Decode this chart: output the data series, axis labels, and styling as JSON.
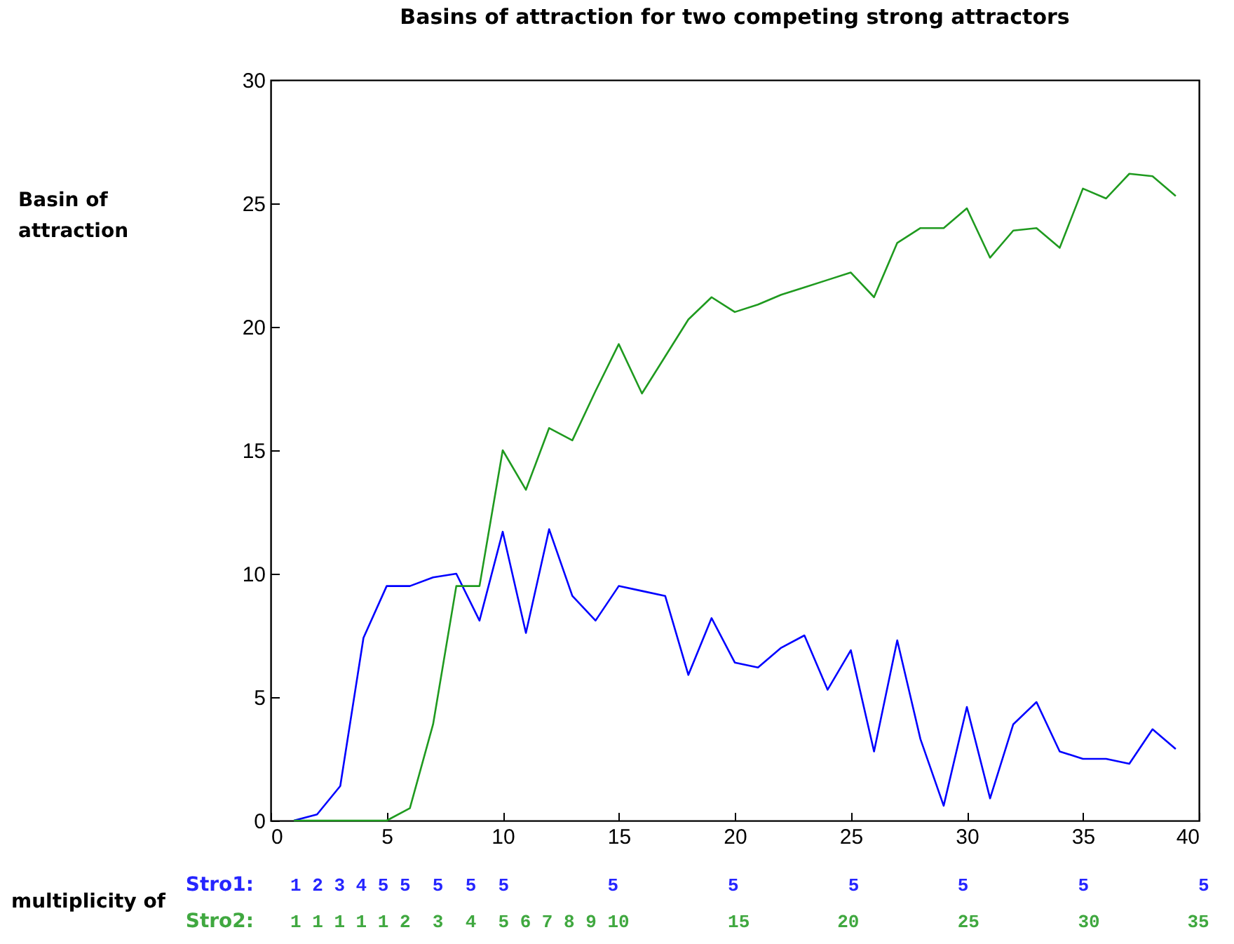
{
  "chart_data": {
    "type": "line",
    "title": "Basins of attraction for two competing strong attractors",
    "x": [
      1,
      2,
      3,
      4,
      5,
      6,
      7,
      8,
      9,
      10,
      11,
      12,
      13,
      14,
      15,
      16,
      17,
      18,
      19,
      20,
      21,
      22,
      23,
      24,
      25,
      26,
      27,
      28,
      29,
      30,
      31,
      32,
      33,
      34,
      35,
      36,
      37,
      38,
      39
    ],
    "series": [
      {
        "color": "#0000ff",
        "values": [
          0,
          0.25,
          1.4,
          7.4,
          9.5,
          9.5,
          9.85,
          10.0,
          8.1,
          11.7,
          7.6,
          11.8,
          9.1,
          8.1,
          9.5,
          9.3,
          9.1,
          5.9,
          8.2,
          6.4,
          6.2,
          7.0,
          7.5,
          5.3,
          6.9,
          2.8,
          7.3,
          3.3,
          0.6,
          4.6,
          0.9,
          3.9,
          4.8,
          2.8,
          2.5,
          2.5,
          2.3,
          3.7,
          2.9
        ]
      },
      {
        "color": "#1f9a1f",
        "values": [
          0,
          0,
          0,
          0,
          0,
          0.5,
          3.9,
          9.5,
          9.5,
          15.0,
          13.4,
          15.9,
          15.4,
          17.4,
          19.3,
          17.3,
          18.8,
          20.3,
          21.2,
          20.6,
          20.9,
          21.3,
          21.6,
          21.9,
          22.2,
          21.2,
          23.4,
          24.0,
          24.0,
          24.8,
          22.8,
          23.9,
          24.0,
          23.2,
          25.6,
          25.2,
          26.2,
          26.1,
          25.3
        ]
      }
    ],
    "xlim": [
      0,
      40
    ],
    "xticks": [
      0,
      5,
      10,
      15,
      20,
      25,
      30,
      35,
      40
    ],
    "ylim": [
      0,
      30
    ],
    "yticks": [
      0,
      5,
      10,
      15,
      20,
      25,
      30
    ],
    "grid": false,
    "legend": false,
    "annotations": [
      "Basin of attraction",
      "multiplicity of",
      "Stro1:",
      "1 2 3 4 5 5  5  5  5         5          5          5         5          5          5",
      "Stro2:",
      "1 1 1 1 1 2  3  4  5 6 7 8 9 10         15        20         25         30        35"
    ]
  }
}
